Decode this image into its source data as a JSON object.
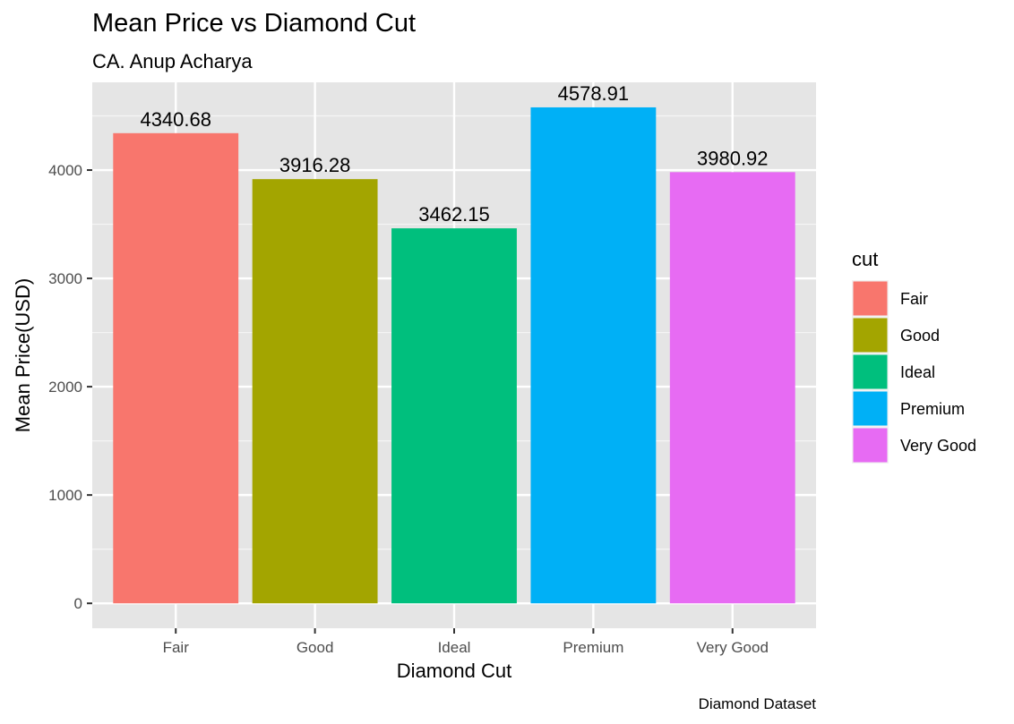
{
  "chart_data": {
    "type": "bar",
    "title": "Mean Price vs Diamond Cut",
    "subtitle": "CA. Anup Acharya",
    "xlabel": "Diamond Cut",
    "ylabel": "Mean Price(USD)",
    "caption": "Diamond Dataset",
    "categories": [
      "Fair",
      "Good",
      "Ideal",
      "Premium",
      "Very Good"
    ],
    "values": [
      4340.68,
      3916.28,
      3462.15,
      4578.91,
      3980.92
    ],
    "value_labels": [
      "4340.68",
      "3916.28",
      "3462.15",
      "4578.91",
      "3980.92"
    ],
    "colors": [
      "#F8766D",
      "#A3A500",
      "#00BF7D",
      "#00B0F6",
      "#E76BF3"
    ],
    "ylim": [
      -230,
      4810
    ],
    "yticks": [
      0,
      1000,
      2000,
      3000,
      4000
    ],
    "ytick_labels": [
      "0",
      "1000",
      "2000",
      "3000",
      "4000"
    ],
    "grid": true,
    "legend": {
      "title": "cut",
      "position": "right",
      "entries": [
        "Fair",
        "Good",
        "Ideal",
        "Premium",
        "Very Good"
      ]
    },
    "panel_background": "#EBEBEB",
    "grid_color": "#FFFFFF"
  }
}
